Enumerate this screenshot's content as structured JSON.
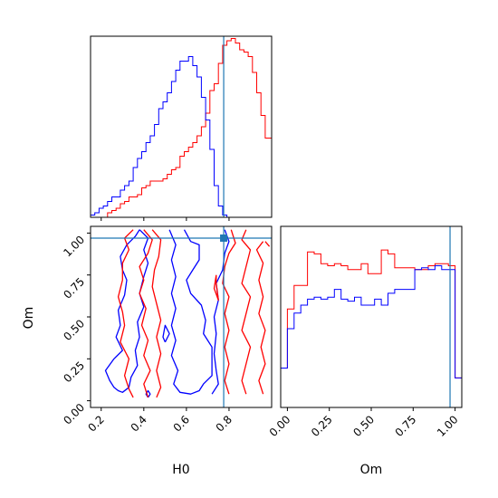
{
  "chart_data": [
    {
      "panel": "H0 marginal",
      "type": "histogram",
      "xlim": [
        0.15,
        1.0
      ],
      "truth": 0.775,
      "bins": [
        0.15,
        0.17,
        0.19,
        0.21,
        0.23,
        0.25,
        0.27,
        0.29,
        0.31,
        0.33,
        0.35,
        0.37,
        0.39,
        0.41,
        0.43,
        0.45,
        0.47,
        0.49,
        0.51,
        0.53,
        0.55,
        0.57,
        0.59,
        0.61,
        0.63,
        0.65,
        0.67,
        0.69,
        0.71,
        0.73,
        0.75,
        0.77,
        0.79,
        0.81,
        0.83,
        0.85,
        0.87,
        0.89,
        0.91,
        0.93,
        0.95,
        0.97,
        1.0
      ],
      "series": [
        {
          "color": "#ff0000",
          "values": [
            0,
            0,
            0,
            0,
            0.02,
            0.03,
            0.04,
            0.06,
            0.07,
            0.09,
            0.09,
            0.1,
            0.13,
            0.14,
            0.16,
            0.16,
            0.16,
            0.17,
            0.19,
            0.21,
            0.22,
            0.27,
            0.29,
            0.31,
            0.33,
            0.36,
            0.4,
            0.46,
            0.56,
            0.59,
            0.68,
            0.76,
            0.78,
            0.79,
            0.77,
            0.74,
            0.73,
            0.71,
            0.64,
            0.55,
            0.45,
            0.35
          ]
        },
        {
          "color": "#0000ff",
          "values": [
            0.01,
            0.02,
            0.04,
            0.05,
            0.07,
            0.09,
            0.09,
            0.12,
            0.14,
            0.16,
            0.22,
            0.26,
            0.29,
            0.33,
            0.36,
            0.41,
            0.48,
            0.51,
            0.55,
            0.6,
            0.65,
            0.69,
            0.69,
            0.71,
            0.67,
            0.62,
            0.53,
            0.43,
            0.3,
            0.14,
            0.05,
            0.01,
            0,
            0,
            0,
            0,
            0,
            0,
            0,
            0,
            0,
            0
          ]
        }
      ]
    },
    {
      "panel": "Om marginal",
      "type": "histogram",
      "xlabel": "Om",
      "xlim": [
        -0.04,
        1.04
      ],
      "truth": 0.97,
      "xticks": [
        "0.00",
        "0.25",
        "0.50",
        "0.75",
        "1.00"
      ],
      "bins": [
        -0.04,
        0.0,
        0.04,
        0.08,
        0.12,
        0.16,
        0.2,
        0.24,
        0.28,
        0.32,
        0.36,
        0.4,
        0.44,
        0.48,
        0.52,
        0.56,
        0.6,
        0.64,
        0.68,
        0.72,
        0.76,
        0.8,
        0.84,
        0.88,
        0.92,
        0.96,
        1.0,
        1.04
      ],
      "series": [
        {
          "color": "#ff0000",
          "values": [
            0.2,
            0.5,
            0.62,
            0.62,
            0.79,
            0.78,
            0.73,
            0.72,
            0.73,
            0.72,
            0.7,
            0.7,
            0.73,
            0.68,
            0.68,
            0.8,
            0.78,
            0.71,
            0.71,
            0.71,
            0.7,
            0.7,
            0.72,
            0.73,
            0.73,
            0.72,
            0.15
          ]
        },
        {
          "color": "#0000ff",
          "values": [
            0.2,
            0.4,
            0.48,
            0.52,
            0.55,
            0.56,
            0.55,
            0.56,
            0.6,
            0.55,
            0.54,
            0.56,
            0.52,
            0.52,
            0.55,
            0.52,
            0.58,
            0.6,
            0.6,
            0.6,
            0.7,
            0.71,
            0.7,
            0.72,
            0.7,
            0.7,
            0.15
          ]
        }
      ]
    },
    {
      "panel": "H0 vs Om",
      "type": "contour",
      "xlabel": "H0",
      "ylabel": "Om",
      "xlim": [
        0.15,
        1.0
      ],
      "ylim": [
        -0.04,
        1.04
      ],
      "xticks": [
        "0.2",
        "0.4",
        "0.6",
        "0.8"
      ],
      "yticks": [
        "0.00",
        "0.25",
        "0.50",
        "0.75",
        "1.00"
      ],
      "truth": [
        0.775,
        0.97
      ],
      "series": [
        {
          "color": "#0000ff",
          "contours": [
            [
              [
                0.38,
                1.02
              ],
              [
                0.36,
                0.98
              ],
              [
                0.32,
                0.93
              ],
              [
                0.29,
                0.86
              ],
              [
                0.3,
                0.78
              ],
              [
                0.32,
                0.72
              ],
              [
                0.31,
                0.63
              ],
              [
                0.28,
                0.54
              ],
              [
                0.29,
                0.45
              ],
              [
                0.27,
                0.38
              ],
              [
                0.3,
                0.3
              ],
              [
                0.26,
                0.25
              ],
              [
                0.22,
                0.18
              ],
              [
                0.24,
                0.12
              ],
              [
                0.26,
                0.08
              ],
              [
                0.28,
                0.06
              ],
              [
                0.3,
                0.05
              ],
              [
                0.33,
                0.08
              ],
              [
                0.34,
                0.14
              ],
              [
                0.37,
                0.21
              ],
              [
                0.36,
                0.3
              ],
              [
                0.38,
                0.38
              ],
              [
                0.37,
                0.47
              ],
              [
                0.4,
                0.56
              ],
              [
                0.38,
                0.64
              ],
              [
                0.4,
                0.74
              ],
              [
                0.42,
                0.82
              ],
              [
                0.4,
                0.9
              ],
              [
                0.42,
                0.97
              ],
              [
                0.38,
                1.02
              ]
            ],
            [
              [
                0.59,
                1.02
              ],
              [
                0.62,
                0.95
              ],
              [
                0.66,
                0.93
              ],
              [
                0.66,
                0.84
              ],
              [
                0.63,
                0.78
              ],
              [
                0.6,
                0.72
              ],
              [
                0.62,
                0.64
              ],
              [
                0.67,
                0.57
              ],
              [
                0.69,
                0.48
              ],
              [
                0.68,
                0.4
              ],
              [
                0.72,
                0.32
              ],
              [
                0.72,
                0.24
              ],
              [
                0.72,
                0.15
              ],
              [
                0.68,
                0.1
              ],
              [
                0.66,
                0.06
              ],
              [
                0.62,
                0.04
              ],
              [
                0.57,
                0.05
              ],
              [
                0.54,
                0.1
              ],
              [
                0.56,
                0.18
              ],
              [
                0.53,
                0.27
              ],
              [
                0.55,
                0.36
              ],
              [
                0.53,
                0.45
              ],
              [
                0.55,
                0.55
              ],
              [
                0.53,
                0.64
              ],
              [
                0.55,
                0.74
              ],
              [
                0.53,
                0.84
              ],
              [
                0.55,
                0.93
              ],
              [
                0.52,
                1.02
              ]
            ],
            [
              [
                0.5,
                0.35
              ],
              [
                0.52,
                0.4
              ],
              [
                0.5,
                0.45
              ],
              [
                0.49,
                0.38
              ],
              [
                0.5,
                0.35
              ]
            ],
            [
              [
                0.42,
                0.02
              ],
              [
                0.43,
                0.04
              ],
              [
                0.42,
                0.06
              ],
              [
                0.41,
                0.04
              ],
              [
                0.42,
                0.02
              ]
            ],
            [
              [
                0.78,
                1.02
              ],
              [
                0.8,
                0.95
              ],
              [
                0.78,
                0.88
              ],
              [
                0.77,
                0.78
              ],
              [
                0.74,
                0.7
              ],
              [
                0.75,
                0.6
              ],
              [
                0.73,
                0.5
              ],
              [
                0.74,
                0.4
              ],
              [
                0.73,
                0.28
              ],
              [
                0.74,
                0.18
              ],
              [
                0.75,
                0.1
              ],
              [
                0.72,
                0.04
              ]
            ]
          ]
        },
        {
          "color": "#ff0000",
          "contours": [
            [
              [
                0.35,
                1.02
              ],
              [
                0.31,
                0.97
              ],
              [
                0.33,
                0.9
              ],
              [
                0.3,
                0.82
              ],
              [
                0.3,
                0.72
              ],
              [
                0.28,
                0.62
              ],
              [
                0.3,
                0.53
              ],
              [
                0.31,
                0.45
              ],
              [
                0.29,
                0.35
              ],
              [
                0.33,
                0.25
              ],
              [
                0.31,
                0.15
              ],
              [
                0.33,
                0.07
              ],
              [
                0.35,
                0.02
              ]
            ],
            [
              [
                0.4,
                1.02
              ],
              [
                0.44,
                0.96
              ],
              [
                0.42,
                0.88
              ],
              [
                0.38,
                0.8
              ],
              [
                0.4,
                0.72
              ],
              [
                0.38,
                0.64
              ],
              [
                0.41,
                0.55
              ],
              [
                0.39,
                0.45
              ],
              [
                0.42,
                0.36
              ],
              [
                0.4,
                0.27
              ],
              [
                0.43,
                0.18
              ],
              [
                0.4,
                0.1
              ],
              [
                0.42,
                0.02
              ]
            ],
            [
              [
                0.44,
                1.02
              ],
              [
                0.48,
                0.96
              ],
              [
                0.47,
                0.86
              ],
              [
                0.45,
                0.78
              ],
              [
                0.44,
                0.68
              ],
              [
                0.46,
                0.58
              ],
              [
                0.48,
                0.48
              ],
              [
                0.46,
                0.38
              ],
              [
                0.48,
                0.28
              ],
              [
                0.46,
                0.18
              ],
              [
                0.48,
                0.08
              ],
              [
                0.46,
                0.02
              ]
            ],
            [
              [
                0.81,
                1.02
              ],
              [
                0.83,
                0.94
              ],
              [
                0.8,
                0.88
              ],
              [
                0.78,
                0.8
              ],
              [
                0.77,
                0.7
              ],
              [
                0.8,
                0.62
              ],
              [
                0.78,
                0.52
              ],
              [
                0.8,
                0.42
              ],
              [
                0.78,
                0.32
              ],
              [
                0.8,
                0.22
              ],
              [
                0.78,
                0.12
              ],
              [
                0.8,
                0.04
              ]
            ],
            [
              [
                0.88,
                1.02
              ],
              [
                0.86,
                0.96
              ],
              [
                0.9,
                0.9
              ],
              [
                0.88,
                0.8
              ],
              [
                0.86,
                0.7
              ],
              [
                0.9,
                0.62
              ],
              [
                0.88,
                0.52
              ],
              [
                0.86,
                0.42
              ],
              [
                0.9,
                0.32
              ],
              [
                0.88,
                0.22
              ],
              [
                0.86,
                0.12
              ],
              [
                0.88,
                0.04
              ]
            ],
            [
              [
                0.96,
                0.95
              ],
              [
                0.93,
                0.9
              ],
              [
                0.96,
                0.82
              ],
              [
                0.94,
                0.72
              ],
              [
                0.96,
                0.62
              ],
              [
                0.94,
                0.52
              ],
              [
                0.97,
                0.42
              ],
              [
                0.95,
                0.32
              ],
              [
                0.97,
                0.22
              ],
              [
                0.94,
                0.12
              ],
              [
                0.96,
                0.04
              ]
            ],
            [
              [
                0.97,
                0.95
              ],
              [
                0.99,
                0.92
              ]
            ],
            [
              [
                0.74,
                0.75
              ],
              [
                0.73,
                0.67
              ],
              [
                0.75,
                0.6
              ],
              [
                0.74,
                0.7
              ],
              [
                0.74,
                0.75
              ]
            ]
          ]
        }
      ]
    }
  ]
}
